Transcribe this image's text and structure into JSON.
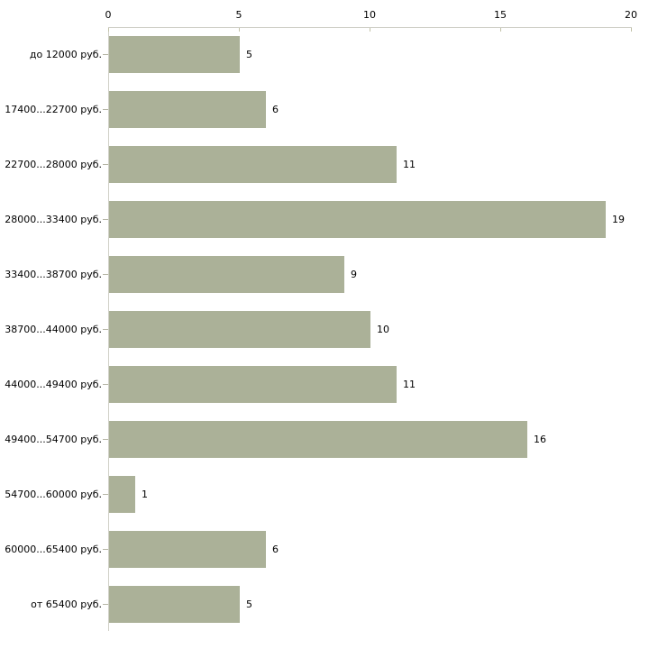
{
  "chart_data": {
    "type": "bar",
    "orientation": "horizontal",
    "title": "",
    "xlabel": "",
    "ylabel": "",
    "categories": [
      "до 12000 руб.",
      "17400...22700 руб.",
      "22700...28000 руб.",
      "28000...33400 руб.",
      "33400...38700 руб.",
      "38700...44000 руб.",
      "44000...49400 руб.",
      "49400...54700 руб.",
      "54700...60000 руб.",
      "60000...65400 руб.",
      "от 65400 руб."
    ],
    "values": [
      5,
      6,
      11,
      19,
      9,
      10,
      11,
      16,
      1,
      6,
      5
    ],
    "xlim": [
      0,
      20
    ],
    "x_ticks": [
      0,
      5,
      10,
      15,
      20
    ],
    "grid": false,
    "legend": false,
    "value_labels_shown": true,
    "colors": {
      "bar": "#abb198",
      "axis_line": "#d0d0c7",
      "tick": "#c2c2a8",
      "category_tick": "#b5b5a5",
      "text": "#000000",
      "background": "#ffffff"
    }
  }
}
